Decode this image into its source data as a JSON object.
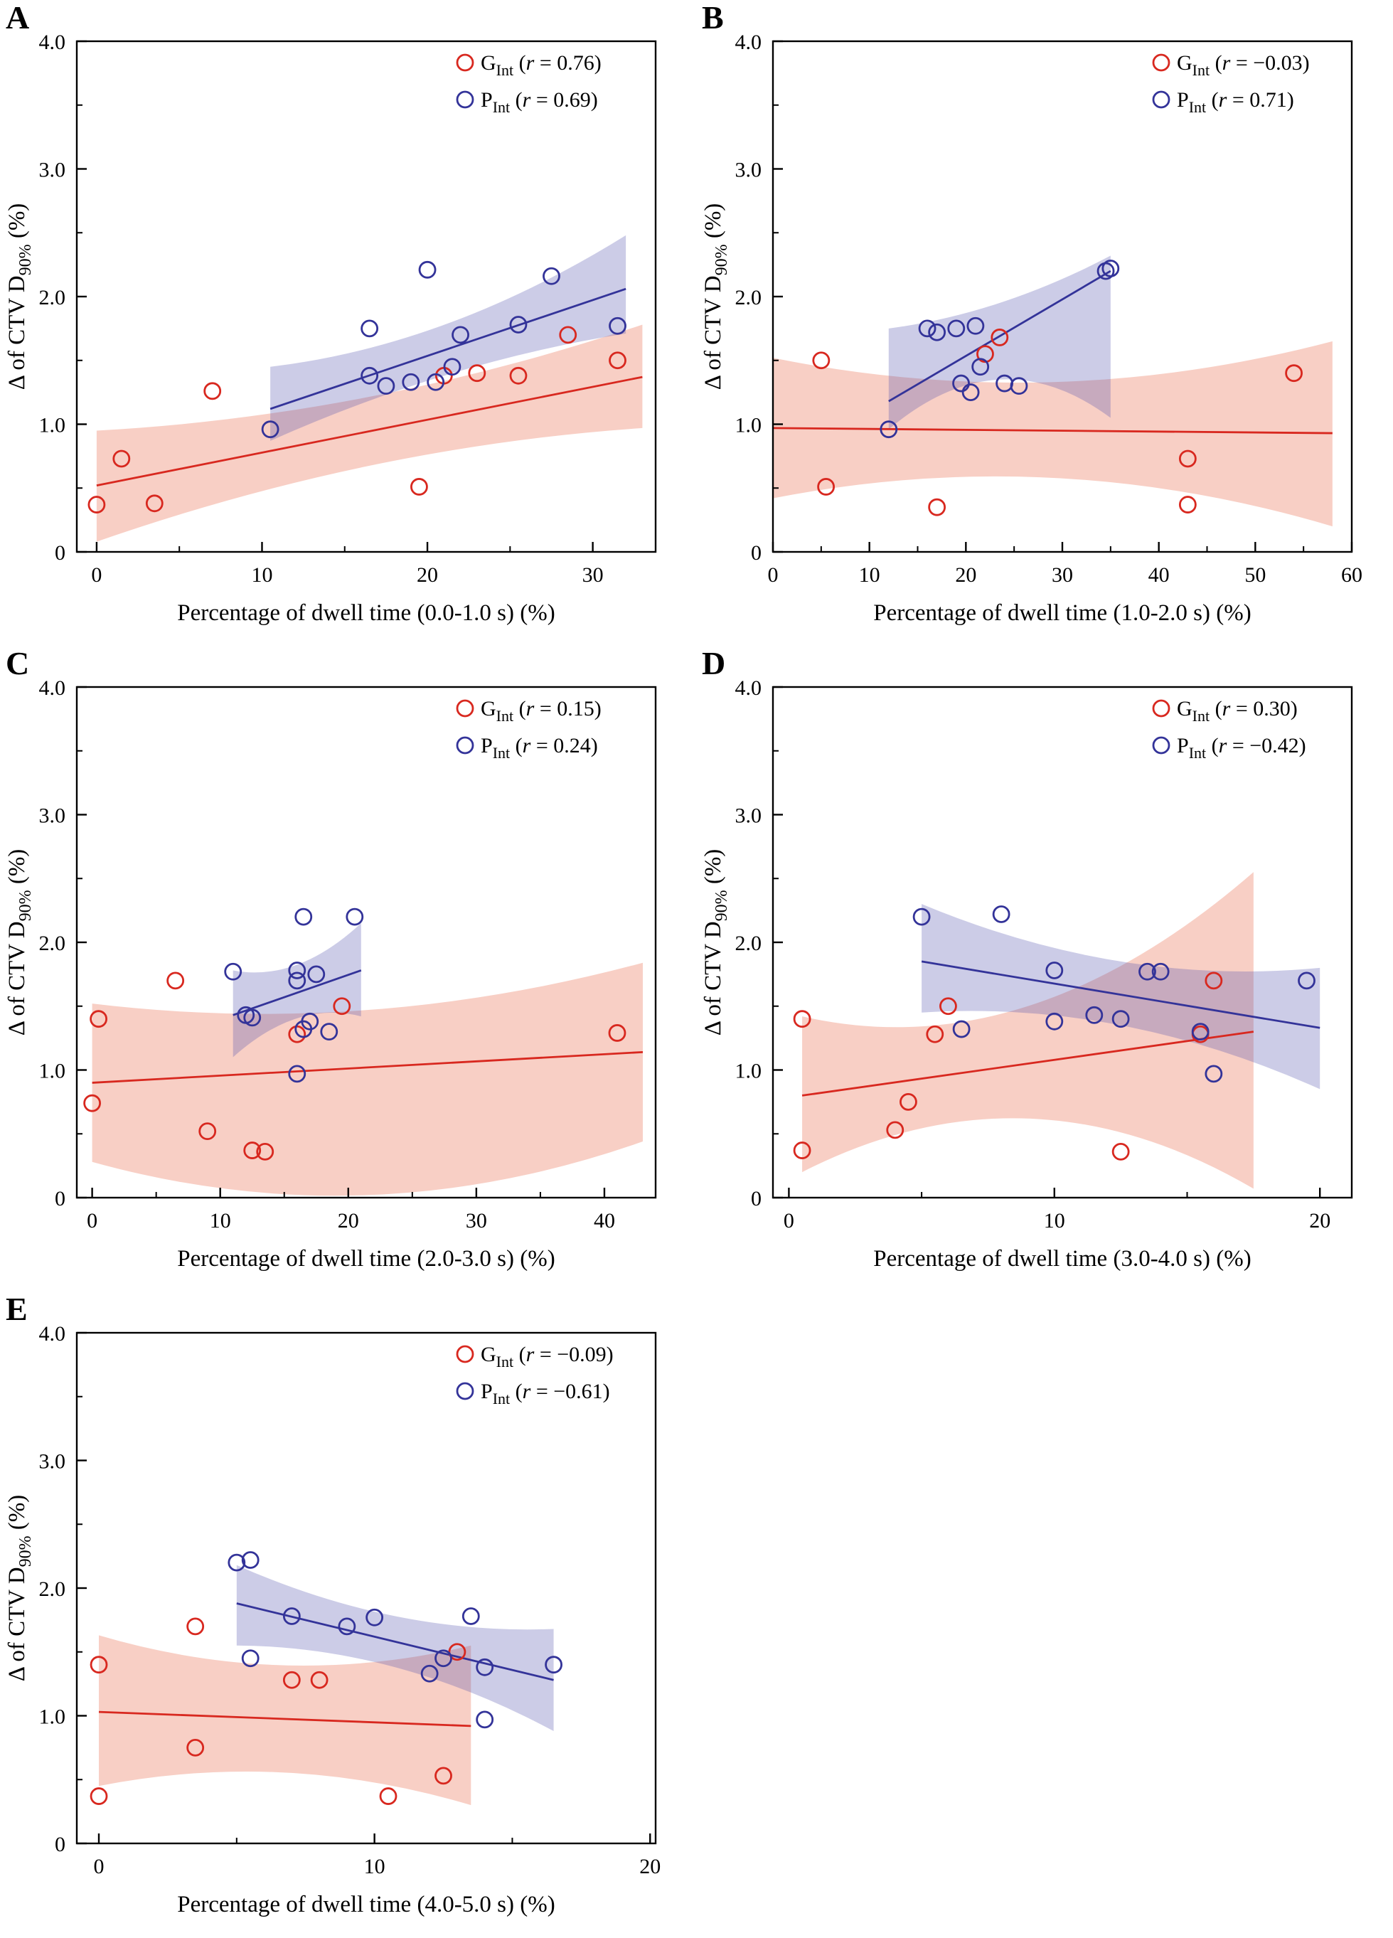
{
  "figure": {
    "colors": {
      "red": "#d8281f",
      "blue": "#333399",
      "red_band": "rgba(235,110,80,0.33)",
      "blue_band": "rgba(85,85,175,0.30)",
      "axis": "#000000"
    },
    "ylabel": {
      "pre": "Δ of CTV D",
      "sub": "90%",
      "post": " (%)"
    },
    "yticks": {
      "values": [
        0,
        1,
        2,
        3,
        4
      ],
      "labels": [
        "0",
        "1.0",
        "2.0",
        "3.0",
        "4.0"
      ]
    },
    "legend_r_var": "r"
  },
  "chart_data": [
    {
      "type": "scatter",
      "label": "A",
      "xlabel": "Percentage of dwell time (0.0-1.0 s) (%)",
      "ylabel": "Δ of CTV D90% (%)",
      "xlim": [
        -1.2,
        33.8
      ],
      "xticks": [
        0,
        10,
        20,
        30
      ],
      "ylim": [
        0,
        4
      ],
      "grid": false,
      "legend_position": "top-right",
      "series": [
        {
          "name": "G",
          "sub": "Int",
          "r_value": "0.76",
          "color": "red",
          "points": [
            [
              0,
              0.37
            ],
            [
              1.5,
              0.73
            ],
            [
              3.5,
              0.38
            ],
            [
              7,
              1.26
            ],
            [
              19.5,
              0.51
            ],
            [
              21,
              1.38
            ],
            [
              23,
              1.4
            ],
            [
              25.5,
              1.38
            ],
            [
              28.5,
              1.7
            ],
            [
              31.5,
              1.5
            ]
          ],
          "trend": {
            "x": [
              0,
              33
            ],
            "y": [
              0.52,
              1.37
            ]
          },
          "band": {
            "top": [
              0.43,
              0.27,
              0.41
            ],
            "bot": [
              0.44,
              0.27,
              0.4
            ]
          }
        },
        {
          "name": "P",
          "sub": "Int",
          "r_value": "0.69",
          "color": "blue",
          "points": [
            [
              10.5,
              0.96
            ],
            [
              16.5,
              1.75
            ],
            [
              16.5,
              1.38
            ],
            [
              17.5,
              1.3
            ],
            [
              19,
              1.33
            ],
            [
              20,
              2.21
            ],
            [
              20.5,
              1.33
            ],
            [
              21.5,
              1.45
            ],
            [
              22,
              1.7
            ],
            [
              25.5,
              1.78
            ],
            [
              27.5,
              2.16
            ],
            [
              31.5,
              1.77
            ]
          ],
          "trend": {
            "x": [
              10.5,
              32
            ],
            "y": [
              1.12,
              2.06
            ]
          },
          "band": {
            "top": [
              0.33,
              0.2,
              0.42
            ],
            "bot": [
              0.25,
              0.2,
              0.35
            ]
          }
        }
      ]
    },
    {
      "type": "scatter",
      "label": "B",
      "xlabel": "Percentage of dwell time (1.0-2.0 s) (%)",
      "ylabel": "Δ of CTV D90% (%)",
      "xlim": [
        0,
        60
      ],
      "xticks": [
        0,
        10,
        20,
        30,
        40,
        50,
        60
      ],
      "ylim": [
        0,
        4
      ],
      "grid": false,
      "legend_position": "top-right",
      "series": [
        {
          "name": "G",
          "sub": "Int",
          "r_value": "−0.03",
          "color": "red",
          "points": [
            [
              5,
              1.5
            ],
            [
              5.5,
              0.51
            ],
            [
              17,
              0.35
            ],
            [
              22,
              1.55
            ],
            [
              23.5,
              1.68
            ],
            [
              43,
              0.73
            ],
            [
              43,
              0.37
            ],
            [
              54,
              1.4
            ]
          ],
          "trend": {
            "x": [
              0,
              58
            ],
            "y": [
              0.97,
              0.93
            ]
          },
          "band": {
            "top": [
              0.55,
              0.38,
              0.72
            ],
            "bot": [
              0.55,
              0.37,
              0.73
            ]
          }
        },
        {
          "name": "P",
          "sub": "Int",
          "r_value": "0.71",
          "color": "blue",
          "points": [
            [
              12,
              0.96
            ],
            [
              16,
              1.75
            ],
            [
              17,
              1.72
            ],
            [
              19,
              1.75
            ],
            [
              19.5,
              1.32
            ],
            [
              20.5,
              1.25
            ],
            [
              21,
              1.77
            ],
            [
              21.5,
              1.45
            ],
            [
              24,
              1.32
            ],
            [
              25.5,
              1.3
            ],
            [
              34.5,
              2.2
            ],
            [
              35,
              2.22
            ]
          ],
          "trend": {
            "x": [
              12,
              35
            ],
            "y": [
              1.18,
              2.2
            ]
          },
          "band": {
            "top": [
              0.57,
              0.26,
              0.12
            ],
            "bot": [
              0.22,
              0.34,
              1.15
            ]
          }
        }
      ]
    },
    {
      "type": "scatter",
      "label": "C",
      "xlabel": "Percentage of dwell time (2.0-3.0 s) (%)",
      "ylabel": "Δ of CTV D90% (%)",
      "xlim": [
        -1.2,
        44
      ],
      "xticks": [
        0,
        10,
        20,
        30,
        40
      ],
      "ylim": [
        0,
        4
      ],
      "grid": false,
      "legend_position": "top-right",
      "series": [
        {
          "name": "G",
          "sub": "Int",
          "r_value": "0.15",
          "color": "red",
          "points": [
            [
              0,
              0.74
            ],
            [
              0.5,
              1.4
            ],
            [
              6.5,
              1.7
            ],
            [
              9,
              0.52
            ],
            [
              12.5,
              0.37
            ],
            [
              13.5,
              0.36
            ],
            [
              16,
              1.28
            ],
            [
              19.5,
              1.5
            ],
            [
              41,
              1.29
            ]
          ],
          "trend": {
            "x": [
              0,
              43
            ],
            "y": [
              0.9,
              1.14
            ]
          },
          "band": {
            "top": [
              0.62,
              0.45,
              0.7
            ],
            "bot": [
              0.62,
              1.0,
              0.7
            ]
          }
        },
        {
          "name": "P",
          "sub": "Int",
          "r_value": "0.24",
          "color": "blue",
          "points": [
            [
              11,
              1.77
            ],
            [
              12,
              1.43
            ],
            [
              12.5,
              1.41
            ],
            [
              16,
              1.78
            ],
            [
              16,
              1.7
            ],
            [
              16,
              0.97
            ],
            [
              16.5,
              2.2
            ],
            [
              16.5,
              1.32
            ],
            [
              17,
              1.38
            ],
            [
              17.5,
              1.75
            ],
            [
              18.5,
              1.3
            ],
            [
              20.5,
              2.2
            ]
          ],
          "trend": {
            "x": [
              11,
              21
            ],
            "y": [
              1.43,
              1.78
            ]
          },
          "band": {
            "top": [
              0.35,
              0.22,
              0.37
            ],
            "bot": [
              0.33,
              0.2,
              0.36
            ]
          }
        }
      ]
    },
    {
      "type": "scatter",
      "label": "D",
      "xlabel": "Percentage of dwell time (3.0-4.0 s) (%)",
      "ylabel": "Δ of CTV D90% (%)",
      "xlim": [
        -0.6,
        21.2
      ],
      "xticks": [
        0,
        10,
        20
      ],
      "ylim": [
        0,
        4
      ],
      "grid": false,
      "legend_position": "top-right",
      "series": [
        {
          "name": "G",
          "sub": "Int",
          "r_value": "0.30",
          "color": "red",
          "points": [
            [
              0.5,
              1.4
            ],
            [
              0.5,
              0.37
            ],
            [
              4,
              0.53
            ],
            [
              4.5,
              0.75
            ],
            [
              5.5,
              1.28
            ],
            [
              6,
              1.5
            ],
            [
              12.5,
              0.36
            ],
            [
              15.5,
              1.28
            ],
            [
              16,
              1.7
            ]
          ],
          "trend": {
            "x": [
              0.5,
              17.5
            ],
            "y": [
              0.8,
              1.3
            ]
          },
          "band": {
            "top": [
              0.62,
              0.45,
              1.25
            ],
            "bot": [
              0.6,
              0.43,
              1.23
            ]
          }
        },
        {
          "name": "P",
          "sub": "Int",
          "r_value": "−0.42",
          "color": "blue",
          "points": [
            [
              5,
              2.2
            ],
            [
              6.5,
              1.32
            ],
            [
              8,
              2.22
            ],
            [
              10,
              1.78
            ],
            [
              10,
              1.38
            ],
            [
              11.5,
              1.43
            ],
            [
              12.5,
              1.4
            ],
            [
              13.5,
              1.77
            ],
            [
              14,
              1.77
            ],
            [
              15.5,
              1.3
            ],
            [
              16,
              0.97
            ],
            [
              19.5,
              1.7
            ]
          ],
          "trend": {
            "x": [
              5,
              20
            ],
            "y": [
              1.85,
              1.33
            ]
          },
          "band": {
            "top": [
              0.45,
              0.26,
              0.47
            ],
            "bot": [
              0.4,
              0.24,
              0.48
            ]
          }
        }
      ]
    },
    {
      "type": "scatter",
      "label": "E",
      "xlabel": "Percentage of dwell time (4.0-5.0 s) (%)",
      "ylabel": "Δ of CTV D90% (%)",
      "xlim": [
        -0.8,
        20.2
      ],
      "xticks": [
        0,
        10,
        20
      ],
      "ylim": [
        0,
        4
      ],
      "grid": false,
      "legend_position": "top-right",
      "series": [
        {
          "name": "G",
          "sub": "Int",
          "r_value": "−0.09",
          "color": "red",
          "points": [
            [
              0,
              1.4
            ],
            [
              0,
              0.37
            ],
            [
              3.5,
              1.7
            ],
            [
              3.5,
              0.75
            ],
            [
              7,
              1.28
            ],
            [
              8,
              1.28
            ],
            [
              10.5,
              0.37
            ],
            [
              12.5,
              0.53
            ],
            [
              13,
              1.5
            ]
          ],
          "trend": {
            "x": [
              0,
              13.5
            ],
            "y": [
              1.03,
              0.92
            ]
          },
          "band": {
            "top": [
              0.6,
              0.42,
              0.63
            ],
            "bot": [
              0.58,
              0.42,
              0.62
            ]
          }
        },
        {
          "name": "P",
          "sub": "Int",
          "r_value": "−0.61",
          "color": "blue",
          "points": [
            [
              5,
              2.2
            ],
            [
              5.5,
              2.22
            ],
            [
              5.5,
              1.45
            ],
            [
              7,
              1.78
            ],
            [
              9,
              1.7
            ],
            [
              10,
              1.77
            ],
            [
              12,
              1.33
            ],
            [
              12.5,
              1.45
            ],
            [
              13.5,
              1.78
            ],
            [
              14,
              1.38
            ],
            [
              14,
              0.97
            ],
            [
              16.5,
              1.4
            ]
          ],
          "trend": {
            "x": [
              5,
              16.5
            ],
            "y": [
              1.88,
              1.28
            ]
          },
          "band": {
            "top": [
              0.3,
              0.2,
              0.4
            ],
            "bot": [
              0.33,
              0.2,
              0.4
            ]
          }
        }
      ]
    }
  ]
}
